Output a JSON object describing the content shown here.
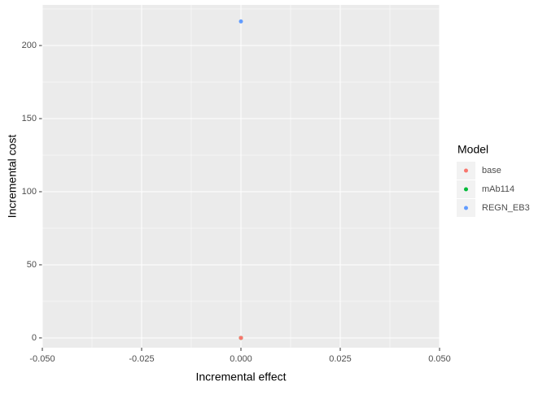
{
  "chart_data": {
    "type": "scatter",
    "x_label": "Incremental effect",
    "y_label": "Incremental cost",
    "legend_title": "Model",
    "legend_position": "right",
    "grid": true,
    "series": [
      {
        "name": "base",
        "color": "#F8766D",
        "x": [
          0
        ],
        "y": [
          0
        ]
      },
      {
        "name": "mAb114",
        "color": "#00BA38",
        "x": [
          0
        ],
        "y": [
          0
        ]
      },
      {
        "name": "REGN_EB3",
        "color": "#619CFF",
        "x": [
          0
        ],
        "y": [
          216.5
        ]
      }
    ],
    "xlim": [
      -0.05,
      0.05
    ],
    "xticks": [
      {
        "value": -0.05,
        "label": "-0.050"
      },
      {
        "value": -0.025,
        "label": "-0.025"
      },
      {
        "value": 0,
        "label": "0.000"
      },
      {
        "value": 0.025,
        "label": "0.025"
      },
      {
        "value": 0.05,
        "label": "0.050"
      }
    ],
    "ylim": [
      -6.7,
      227.8
    ],
    "yticks": [
      0,
      50,
      100,
      150,
      200
    ]
  }
}
